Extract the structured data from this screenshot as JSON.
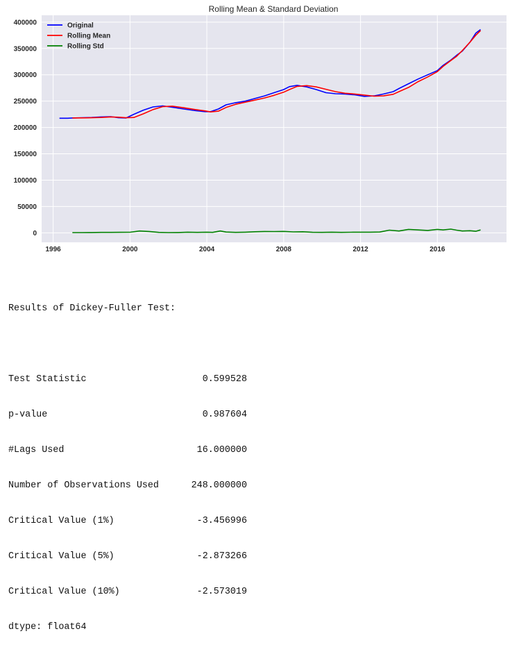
{
  "chart_data": {
    "type": "line",
    "title": "Rolling Mean & Standard Deviation",
    "xlabel": "",
    "ylabel": "",
    "xlim": [
      1995.4,
      2019.6
    ],
    "ylim": [
      -18000,
      413000
    ],
    "xticks": [
      1996,
      2000,
      2004,
      2008,
      2012,
      2016
    ],
    "xtick_labels": [
      "1996",
      "2000",
      "2004",
      "2008",
      "2012",
      "2016"
    ],
    "yticks": [
      0,
      50000,
      100000,
      150000,
      200000,
      250000,
      300000,
      350000,
      400000
    ],
    "ytick_labels": [
      "0",
      "50000",
      "100000",
      "150000",
      "200000",
      "250000",
      "300000",
      "350000",
      "400000"
    ],
    "grid": true,
    "legend_position": "top-left",
    "series": [
      {
        "name": "Original",
        "color": "#0000ff",
        "x": [
          1996.33,
          1996.75,
          1997.0,
          1997.5,
          1998.0,
          1998.5,
          1999.0,
          1999.4,
          1999.8,
          2000.2,
          2000.7,
          2001.2,
          2001.7,
          2002.2,
          2002.8,
          2003.4,
          2003.9,
          2004.2,
          2004.6,
          2005.0,
          2005.5,
          2006.0,
          2006.5,
          2007.0,
          2007.5,
          2008.0,
          2008.3,
          2008.7,
          2009.2,
          2009.7,
          2010.2,
          2010.7,
          2011.2,
          2011.7,
          2012.2,
          2012.7,
          2013.2,
          2013.7,
          2014.0,
          2014.5,
          2015.0,
          2015.5,
          2016.0,
          2016.3,
          2016.7,
          2017.0,
          2017.3,
          2017.7,
          2018.0,
          2018.25
        ],
        "y": [
          217500,
          217500,
          218000,
          218500,
          219000,
          220000,
          220500,
          218500,
          218000,
          225000,
          233000,
          239000,
          241000,
          238500,
          235000,
          232000,
          230000,
          230000,
          235000,
          243000,
          247000,
          250000,
          255000,
          260000,
          266000,
          272000,
          277500,
          280000,
          277000,
          272000,
          266000,
          264000,
          263500,
          262000,
          259000,
          260000,
          263500,
          268000,
          274000,
          283000,
          292000,
          300000,
          308000,
          318000,
          328000,
          337000,
          345000,
          362000,
          379000,
          386000
        ]
      },
      {
        "name": "Rolling Mean",
        "color": "#ff0000",
        "x": [
          1997.0,
          1997.5,
          1998.0,
          1998.5,
          1999.0,
          1999.4,
          1999.8,
          2000.2,
          2000.7,
          2001.2,
          2001.7,
          2002.2,
          2002.8,
          2003.4,
          2003.9,
          2004.2,
          2004.6,
          2005.0,
          2005.5,
          2006.0,
          2006.5,
          2007.0,
          2007.5,
          2008.0,
          2008.3,
          2008.7,
          2009.2,
          2009.7,
          2010.2,
          2010.7,
          2011.2,
          2011.7,
          2012.2,
          2012.7,
          2013.2,
          2013.7,
          2014.0,
          2014.5,
          2015.0,
          2015.5,
          2016.0,
          2016.3,
          2016.7,
          2017.0,
          2017.3,
          2017.7,
          2018.0,
          2018.25
        ],
        "y": [
          218000,
          218200,
          218500,
          219000,
          220000,
          219500,
          218500,
          219000,
          226000,
          234000,
          239500,
          240500,
          237500,
          234000,
          231500,
          229500,
          231000,
          238000,
          244000,
          248000,
          252000,
          256000,
          261000,
          267000,
          272000,
          278000,
          279500,
          277000,
          272500,
          268000,
          265000,
          263500,
          261500,
          259500,
          260000,
          263000,
          268000,
          276000,
          287000,
          296000,
          306000,
          316000,
          327000,
          335000,
          346000,
          362000,
          375000,
          384000
        ]
      },
      {
        "name": "Rolling Std",
        "color": "#008000",
        "x": [
          1997.0,
          1997.5,
          1998.0,
          1998.5,
          1999.0,
          1999.5,
          2000.0,
          2000.5,
          2001.0,
          2001.5,
          2002.0,
          2002.5,
          2003.0,
          2003.5,
          2004.0,
          2004.3,
          2004.7,
          2005.0,
          2005.5,
          2006.0,
          2006.5,
          2007.0,
          2007.5,
          2008.0,
          2008.5,
          2009.0,
          2009.5,
          2010.0,
          2010.5,
          2011.0,
          2011.5,
          2012.0,
          2012.5,
          2013.0,
          2013.5,
          2014.0,
          2014.5,
          2015.0,
          2015.5,
          2016.0,
          2016.3,
          2016.7,
          2017.0,
          2017.3,
          2017.7,
          2018.0,
          2018.25
        ],
        "y": [
          500,
          400,
          600,
          900,
          800,
          1000,
          1100,
          3500,
          2600,
          800,
          500,
          600,
          1200,
          800,
          1200,
          800,
          3500,
          1500,
          900,
          1200,
          2000,
          2600,
          2400,
          2700,
          1800,
          2000,
          1000,
          900,
          1200,
          900,
          1100,
          1300,
          1200,
          1500,
          5000,
          3500,
          6500,
          5500,
          4500,
          6500,
          5500,
          7000,
          5000,
          3500,
          4000,
          3000,
          5500
        ]
      }
    ]
  },
  "test_output": {
    "heading": "Results of Dickey-Fuller Test:",
    "rows": [
      {
        "name": "Test Statistic",
        "value": "0.599528"
      },
      {
        "name": "p-value",
        "value": "0.987604"
      },
      {
        "name": "#Lags Used",
        "value": "16.000000"
      },
      {
        "name": "Number of Observations Used",
        "value": "248.000000"
      },
      {
        "name": "Critical Value (1%)",
        "value": "-3.456996"
      },
      {
        "name": "Critical Value (5%)",
        "value": "-2.873266"
      },
      {
        "name": "Critical Value (10%)",
        "value": "-2.573019"
      }
    ],
    "dtype_line": "dtype: float64"
  }
}
